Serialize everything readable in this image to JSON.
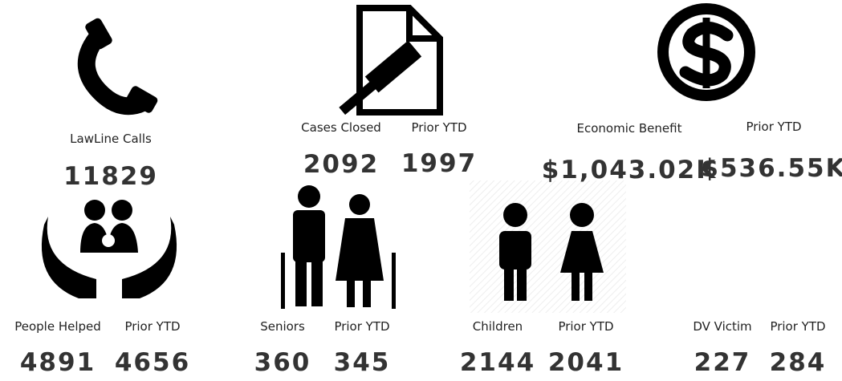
{
  "kpis": [
    {
      "label": "LawLine Calls",
      "value": "11829"
    },
    {
      "label": "Cases Closed",
      "value": "2092",
      "prior_label": "Prior YTD",
      "prior_value": "1997"
    },
    {
      "label": "Economic Benefit",
      "value": "$1,043.02K",
      "prior_label": "Prior YTD",
      "prior_value": "$536.55K"
    },
    {
      "label": "People Helped",
      "value": "4891",
      "prior_label": "Prior YTD",
      "prior_value": "4656"
    },
    {
      "label": "Seniors",
      "value": "360",
      "prior_label": "Prior YTD",
      "prior_value": "345"
    },
    {
      "label": "Children",
      "value": "2144",
      "prior_label": "Prior YTD",
      "prior_value": "2041"
    },
    {
      "label": "DV Victim",
      "value": "227",
      "prior_label": "Prior YTD",
      "prior_value": "284"
    }
  ]
}
